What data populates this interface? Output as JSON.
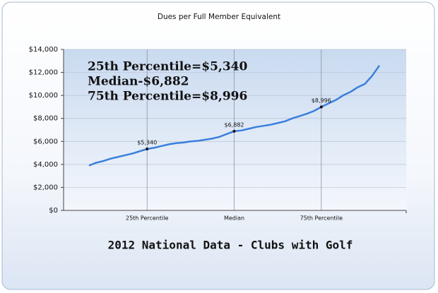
{
  "chart_data": {
    "type": "line",
    "title": "Dues per Full Member Equivalent",
    "subtitle": "2012 National Data - Clubs with Golf",
    "annotations": [
      "25th Percentile=$5,340",
      "Median-$6,882",
      "75th Percentile=$8,996"
    ],
    "categories": [
      null,
      null,
      null,
      null,
      null,
      null,
      null,
      null,
      "25th Percentile",
      null,
      null,
      null,
      null,
      null,
      null,
      null,
      null,
      null,
      null,
      null,
      "Median",
      null,
      null,
      null,
      null,
      null,
      null,
      null,
      null,
      null,
      null,
      null,
      "75th Percentile",
      null,
      null,
      null,
      null,
      null,
      null,
      null,
      null
    ],
    "values": [
      3900,
      4150,
      4300,
      4500,
      4650,
      4800,
      4950,
      5150,
      5340,
      5450,
      5600,
      5750,
      5850,
      5900,
      6000,
      6050,
      6150,
      6250,
      6400,
      6650,
      6882,
      6950,
      7100,
      7250,
      7350,
      7450,
      7600,
      7750,
      8000,
      8200,
      8400,
      8650,
      8996,
      9300,
      9600,
      10000,
      10300,
      10700,
      11000,
      11700,
      12600
    ],
    "value_labels": [
      null,
      null,
      null,
      null,
      null,
      null,
      null,
      null,
      "$5,340",
      null,
      null,
      null,
      null,
      null,
      null,
      null,
      null,
      null,
      null,
      null,
      "$6,882",
      null,
      null,
      null,
      null,
      null,
      null,
      null,
      null,
      null,
      null,
      null,
      "$8,996",
      null,
      null,
      null,
      null,
      null,
      null,
      null,
      null
    ],
    "color": "#3a7fdc",
    "ylim": [
      0,
      14000
    ],
    "yticks": [
      {
        "value": 0,
        "label": "$0"
      },
      {
        "value": 2000,
        "label": "$2,000"
      },
      {
        "value": 4000,
        "label": "$4,000"
      },
      {
        "value": 6000,
        "label": "$6,000"
      },
      {
        "value": 8000,
        "label": "$8,000"
      },
      {
        "value": 10000,
        "label": "$10,000"
      },
      {
        "value": 12000,
        "label": "$12,000"
      },
      {
        "value": 14000,
        "label": "$14,000"
      }
    ],
    "grid": true
  }
}
